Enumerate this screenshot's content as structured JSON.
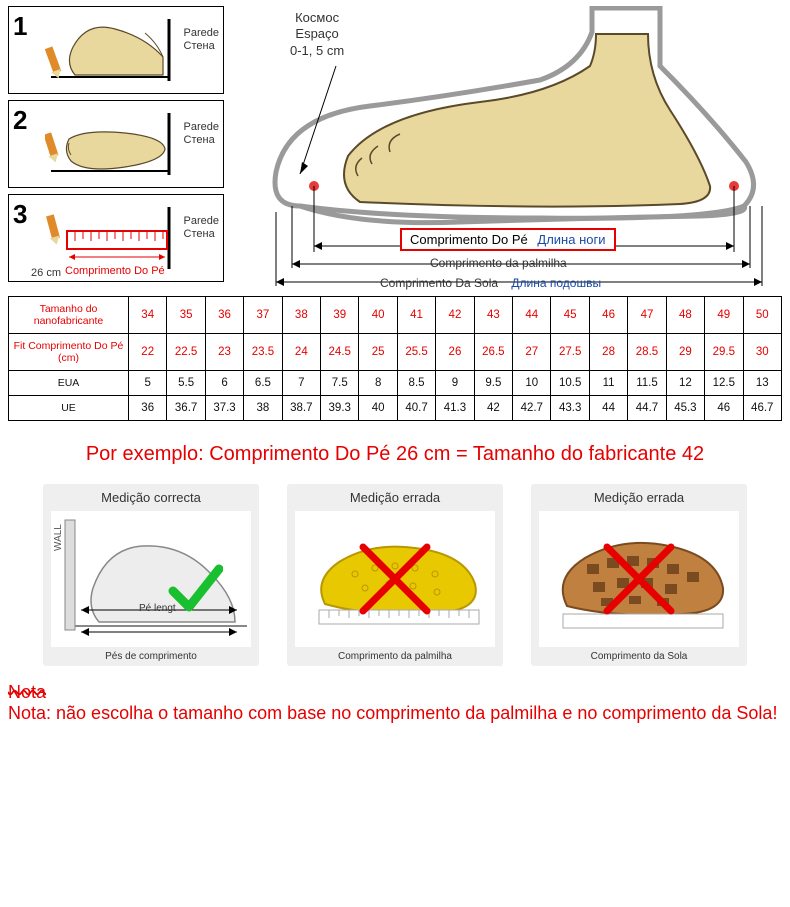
{
  "steps": {
    "labels": {
      "wall_pt": "Parede",
      "wall_ru": "Стена",
      "step3_bottom": "Comprimento Do Pé",
      "step3_size": "26",
      "step3_unit": "cm"
    }
  },
  "space_label": {
    "ru": "Космос",
    "pt": "Espaço",
    "range": "0-1, 5 cm"
  },
  "foot_labels": {
    "foot_len_pt": "Comprimento Do Pé",
    "foot_len_ru": "Длина ноги",
    "insole_pt": "Comprimento da palmilha",
    "sole_pt": "Comprimento Da Sola",
    "sole_ru": "Длина подошвы"
  },
  "table": {
    "row_headers": [
      "Tamanho do nanofabricante",
      "Fit Comprimento Do Pé (cm)",
      "EUA",
      "UE"
    ],
    "rows": [
      [
        "34",
        "35",
        "36",
        "37",
        "38",
        "39",
        "40",
        "41",
        "42",
        "43",
        "44",
        "45",
        "46",
        "47",
        "48",
        "49",
        "50"
      ],
      [
        "22",
        "22.5",
        "23",
        "23.5",
        "24",
        "24.5",
        "25",
        "25.5",
        "26",
        "26.5",
        "27",
        "27.5",
        "28",
        "28.5",
        "29",
        "29.5",
        "30"
      ],
      [
        "5",
        "5.5",
        "6",
        "6.5",
        "7",
        "7.5",
        "8",
        "8.5",
        "9",
        "9.5",
        "10",
        "10.5",
        "11",
        "11.5",
        "12",
        "12.5",
        "13"
      ],
      [
        "36",
        "36.7",
        "37.3",
        "38",
        "38.7",
        "39.3",
        "40",
        "40.7",
        "41.3",
        "42",
        "42.7",
        "43.3",
        "44",
        "44.7",
        "45.3",
        "46",
        "46.7"
      ]
    ]
  },
  "example_text": "Por exemplo: Comprimento Do Pé 26 cm = Tamanho do fabricante 42",
  "measure_panels": [
    {
      "title": "Medição correcta",
      "caption": "Pés de comprimento",
      "pe_label": "Pé lengt",
      "wall": "WALL"
    },
    {
      "title": "Medição errada",
      "caption": "Comprimento da palmilha"
    },
    {
      "title": "Medição errada",
      "caption": "Comprimento da Sola"
    }
  ],
  "nota": {
    "word": "Nota",
    "text": "Nota: não escolha o tamanho com base no comprimento da palmilha e no comprimento da Sola!"
  },
  "colors": {
    "red": "#e60000",
    "foot_fill": "#e9d89e",
    "foot_stroke": "#5a4a2a",
    "shoe_gray": "#b9b9b9",
    "insole_yellow": "#e8c800",
    "sole_brown": "#c08040",
    "green": "#18c030"
  }
}
